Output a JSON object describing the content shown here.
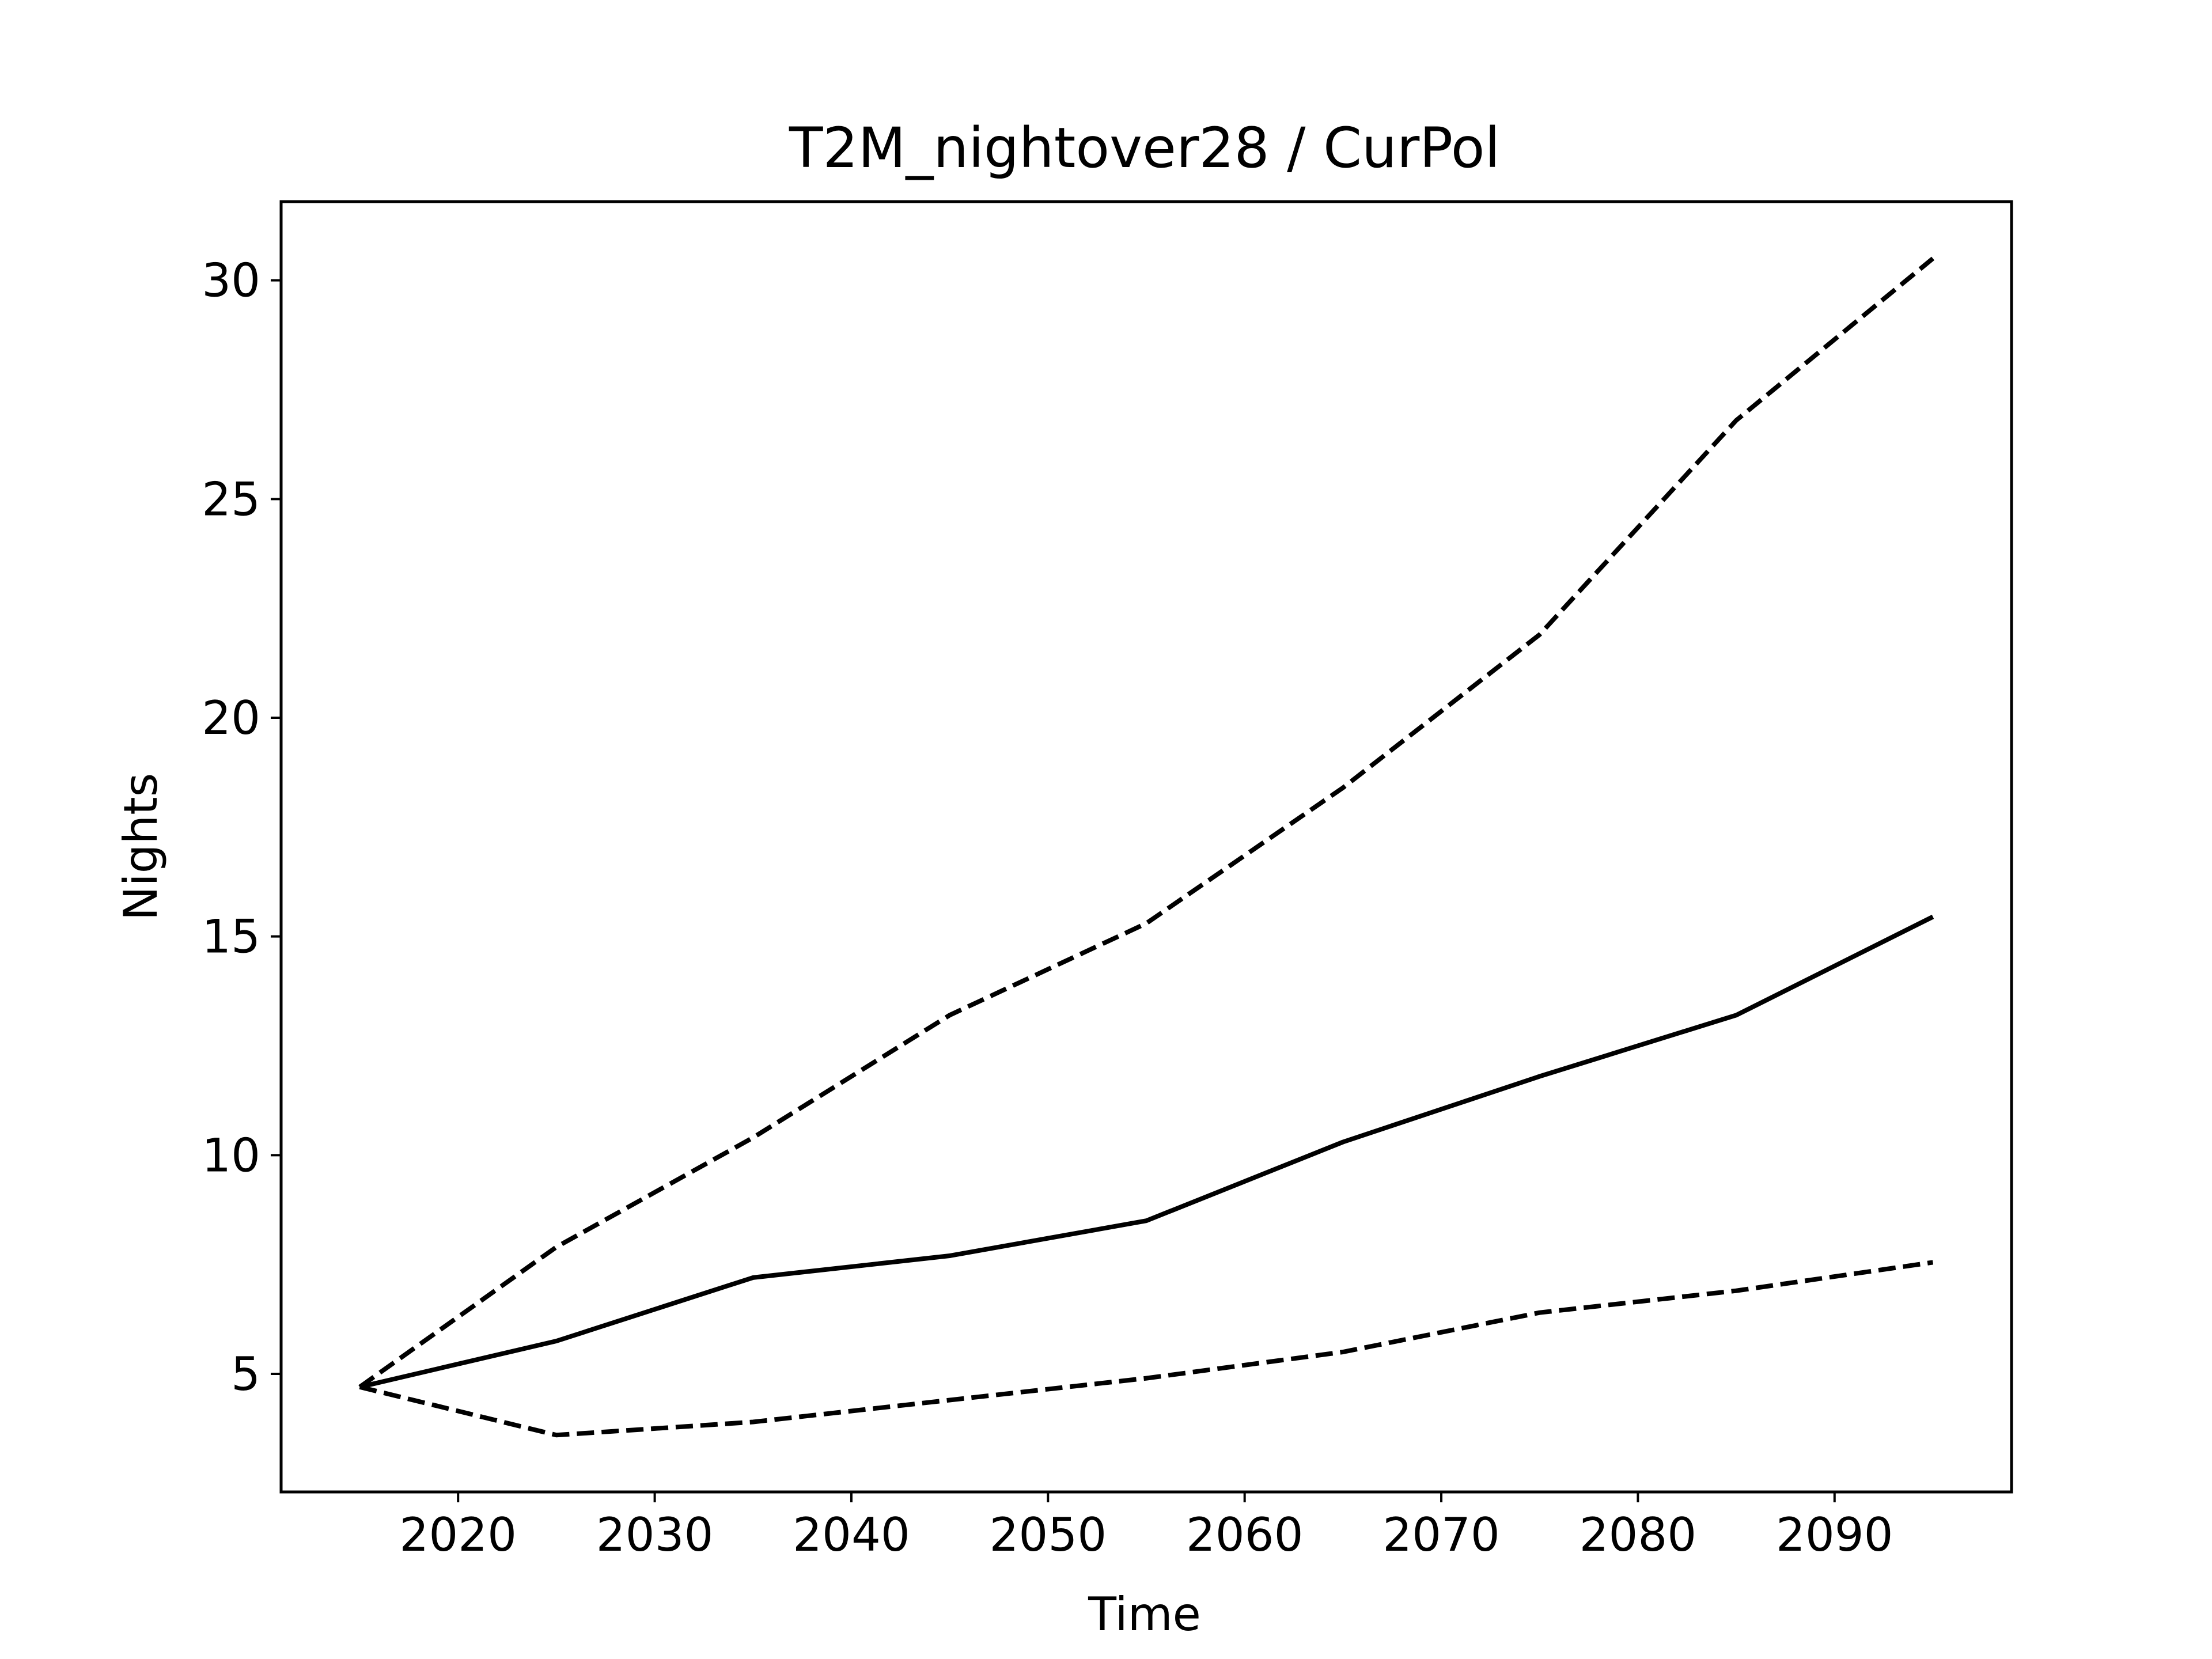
{
  "chart_data": {
    "type": "line",
    "title": "T2M_nightover28 / CurPol",
    "xlabel": "Time",
    "ylabel": "Nights",
    "xlim": [
      2011,
      2099
    ],
    "ylim": [
      2.3,
      31.8
    ],
    "xticks": [
      2020,
      2030,
      2040,
      2050,
      2060,
      2070,
      2080,
      2090
    ],
    "yticks": [
      5,
      10,
      15,
      20,
      25,
      30
    ],
    "grid": false,
    "x": [
      2015,
      2025,
      2035,
      2045,
      2055,
      2065,
      2075,
      2085,
      2095
    ],
    "series": [
      {
        "values": [
          4.7,
          7.9,
          10.4,
          13.2,
          15.3,
          18.4,
          21.9,
          26.8,
          30.5
        ],
        "style": "dashed",
        "color": "#000000"
      },
      {
        "values": [
          4.7,
          5.75,
          7.2,
          7.7,
          8.5,
          10.3,
          11.8,
          13.2,
          15.45
        ],
        "style": "solid",
        "color": "#000000"
      },
      {
        "values": [
          4.7,
          3.6,
          3.9,
          4.4,
          4.9,
          5.5,
          6.4,
          6.9,
          7.55
        ],
        "style": "dashed",
        "color": "#000000"
      }
    ]
  }
}
